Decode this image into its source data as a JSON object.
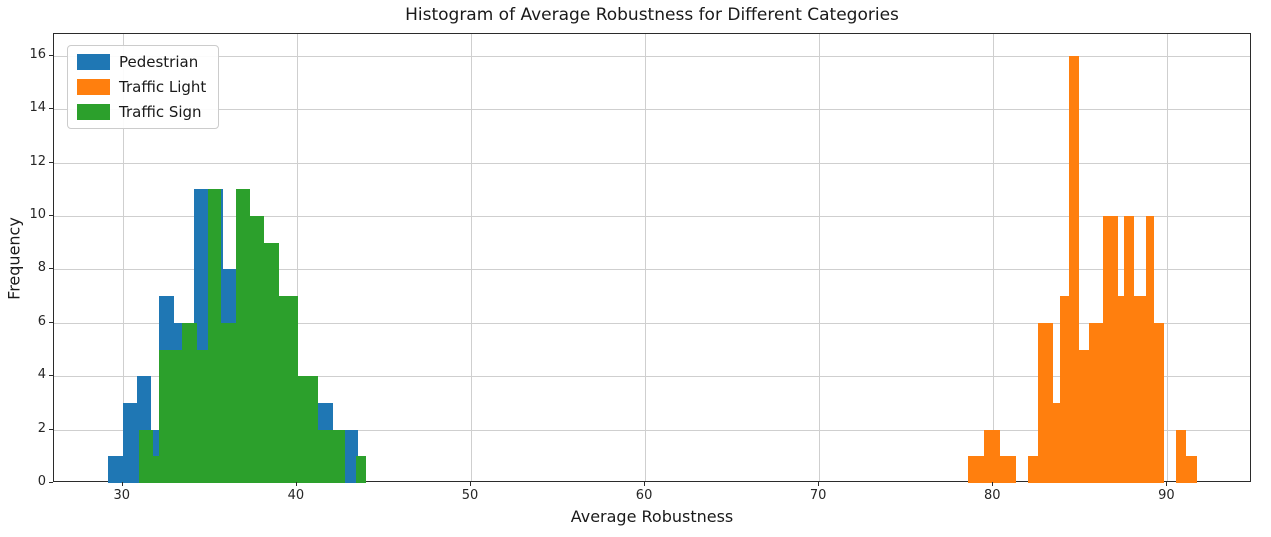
{
  "figure": {
    "title": "Histogram of Average Robustness for Different Categories",
    "xlabel": "Average Robustness",
    "ylabel": "Frequency"
  },
  "axes": {
    "xlim": [
      26.05,
      94.86
    ],
    "ylim": [
      0,
      16.82
    ],
    "xticks": [
      30,
      40,
      50,
      60,
      70,
      80,
      90
    ],
    "yticks": [
      0,
      2,
      4,
      6,
      8,
      10,
      12,
      14,
      16
    ],
    "grid": true,
    "grid_color": "#cfcfcf",
    "spine_color": "#2b2b2b"
  },
  "legend": {
    "position": "upper-left",
    "items": [
      {
        "label": "Pedestrian",
        "color": "#1f77b4"
      },
      {
        "label": "Traffic Light",
        "color": "#ff7f0e"
      },
      {
        "label": "Traffic Sign",
        "color": "#2ca02c"
      }
    ]
  },
  "chart_data": {
    "type": "bar",
    "subtype": "overlaid-histograms",
    "title": "Histogram of Average Robustness for Different Categories",
    "xlabel": "Average Robustness",
    "ylabel": "Frequency",
    "xlim": [
      26.05,
      94.86
    ],
    "ylim": [
      0,
      16.82
    ],
    "legend_position": "upper left",
    "grid": true,
    "series": [
      {
        "name": "Pedestrian",
        "color": "#1f77b4",
        "bars": [
          [
            29.16,
            29.99,
            1
          ],
          [
            29.99,
            30.82,
            3
          ],
          [
            30.82,
            31.65,
            4
          ],
          [
            31.65,
            32.49,
            2
          ],
          [
            32.09,
            32.92,
            7
          ],
          [
            32.92,
            33.75,
            6
          ],
          [
            34.1,
            34.93,
            11
          ],
          [
            34.93,
            35.76,
            11
          ],
          [
            35.76,
            36.59,
            8
          ],
          [
            36.59,
            37.43,
            8
          ],
          [
            37.43,
            38.26,
            3
          ],
          [
            38.26,
            39.09,
            2
          ],
          [
            39.09,
            39.93,
            2
          ],
          [
            39.93,
            40.76,
            2
          ],
          [
            41.22,
            42.05,
            3
          ],
          [
            42.05,
            42.88,
            2
          ],
          [
            42.88,
            43.51,
            2
          ]
        ]
      },
      {
        "name": "Traffic Light",
        "color": "#ff7f0e",
        "bars": [
          [
            78.55,
            79.47,
            1
          ],
          [
            79.47,
            80.39,
            2
          ],
          [
            80.39,
            81.31,
            1
          ],
          [
            82.0,
            82.57,
            1
          ],
          [
            82.57,
            83.43,
            6
          ],
          [
            83.43,
            83.84,
            3
          ],
          [
            83.84,
            84.35,
            7
          ],
          [
            84.35,
            84.93,
            16
          ],
          [
            84.93,
            85.5,
            5
          ],
          [
            85.5,
            86.31,
            6
          ],
          [
            86.31,
            87.17,
            10
          ],
          [
            87.17,
            87.51,
            7
          ],
          [
            87.51,
            88.09,
            10
          ],
          [
            88.09,
            88.78,
            7
          ],
          [
            88.78,
            89.24,
            10
          ],
          [
            89.24,
            89.82,
            6
          ],
          [
            90.5,
            91.07,
            2
          ],
          [
            91.07,
            91.7,
            1
          ]
        ]
      },
      {
        "name": "Traffic Sign",
        "color": "#2ca02c",
        "bars": [
          [
            30.94,
            31.72,
            2
          ],
          [
            31.72,
            32.09,
            1
          ],
          [
            32.09,
            32.92,
            5
          ],
          [
            32.92,
            33.43,
            5
          ],
          [
            33.43,
            34.27,
            6
          ],
          [
            34.27,
            34.87,
            5
          ],
          [
            34.87,
            35.67,
            11
          ],
          [
            35.67,
            36.48,
            6
          ],
          [
            36.48,
            37.31,
            11
          ],
          [
            37.31,
            38.14,
            10
          ],
          [
            38.14,
            38.98,
            9
          ],
          [
            38.98,
            40.04,
            7
          ],
          [
            40.04,
            41.22,
            4
          ],
          [
            41.22,
            42.74,
            2
          ],
          [
            43.4,
            43.98,
            1
          ]
        ]
      }
    ]
  }
}
